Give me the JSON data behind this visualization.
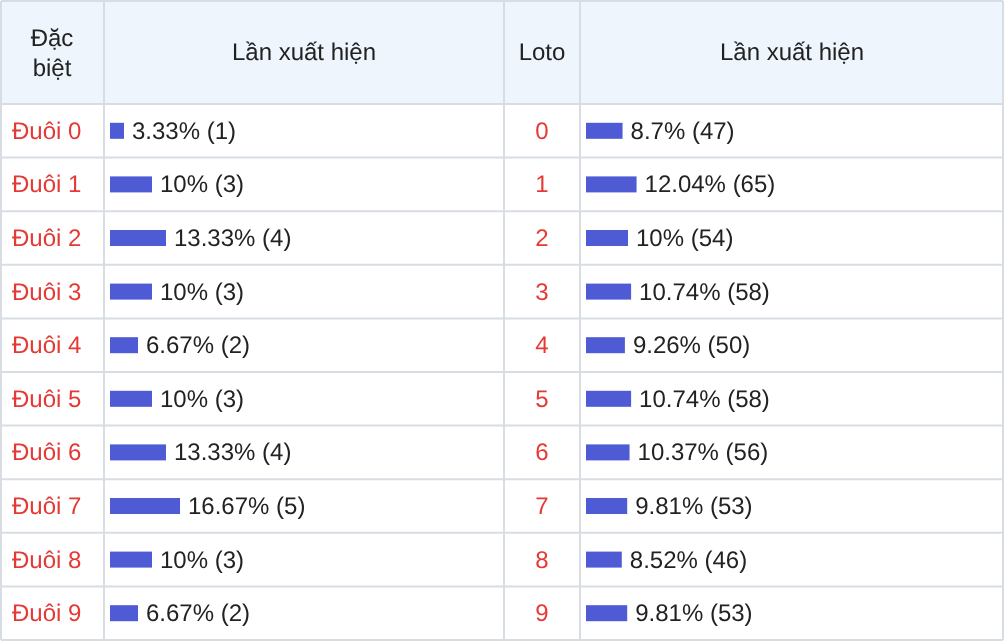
{
  "chart_data": [
    {
      "type": "bar",
      "orientation": "horizontal",
      "xlabel": "Lần xuất hiện",
      "ylabel": "Đặc biệt",
      "categories": [
        "Đuôi 0",
        "Đuôi 1",
        "Đuôi 2",
        "Đuôi 3",
        "Đuôi 4",
        "Đuôi 5",
        "Đuôi 6",
        "Đuôi 7",
        "Đuôi 8",
        "Đuôi 9"
      ],
      "values": [
        3.33,
        10,
        13.33,
        10,
        6.67,
        10,
        13.33,
        16.67,
        10,
        6.67
      ],
      "color": "#4f5bd5",
      "value_labels": [
        "3.33% (1)",
        "10% (3)",
        "13.33% (4)",
        "10% (3)",
        "6.67% (2)",
        "10% (3)",
        "13.33% (4)",
        "16.67% (5)",
        "10% (3)",
        "6.67% (2)"
      ]
    },
    {
      "type": "bar",
      "orientation": "horizontal",
      "xlabel": "Lần xuất hiện",
      "ylabel": "Loto",
      "categories": [
        "0",
        "1",
        "2",
        "3",
        "4",
        "5",
        "6",
        "7",
        "8",
        "9"
      ],
      "values": [
        8.7,
        12.04,
        10,
        10.74,
        9.26,
        10.74,
        10.37,
        9.81,
        8.52,
        9.81
      ],
      "color": "#4f5bd5",
      "value_labels": [
        "8.7% (47)",
        "12.04% (65)",
        "10% (54)",
        "10.74% (58)",
        "9.26% (50)",
        "10.74% (58)",
        "10.37% (56)",
        "9.81% (53)",
        "8.52% (46)",
        "9.81% (53)"
      ]
    }
  ]
}
